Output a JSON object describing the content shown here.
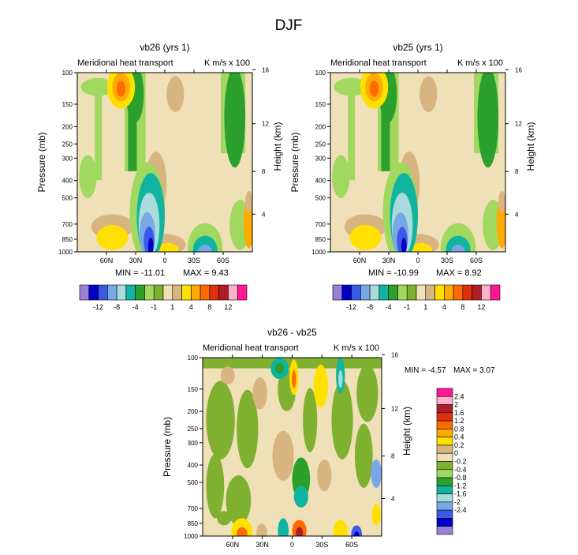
{
  "figure": {
    "title": "DJF"
  },
  "chart_data": [
    {
      "type": "heatmap",
      "title": "vb26 (yrs 1)",
      "subtitle_left": "Meridional heat transport",
      "subtitle_right": "K m/s x 100",
      "ylabel": "Pressure (mb)",
      "ylabel_right": "Height (km)",
      "x_ticks": [
        "60N",
        "30N",
        "0",
        "30S",
        "60S"
      ],
      "x_tick_values": [
        60,
        30,
        0,
        -30,
        -60
      ],
      "xlim": [
        90,
        -90
      ],
      "y_ticks": [
        "100",
        "150",
        "200",
        "250",
        "300",
        "400",
        "500",
        "700",
        "850",
        "1000"
      ],
      "y_tick_values": [
        100,
        150,
        200,
        250,
        300,
        400,
        500,
        700,
        850,
        1000
      ],
      "ylim": [
        1000,
        100
      ],
      "height_ticks": [
        "16",
        "12",
        "8",
        "4"
      ],
      "height_tick_values": [
        16,
        12,
        8,
        4
      ],
      "min_label": "MIN = -11.01",
      "max_label": "MAX =   9.43",
      "colorbar": {
        "orientation": "horizontal",
        "colors": [
          "#9b80d8",
          "#0000c8",
          "#3c5ae6",
          "#78a8e6",
          "#a8dcdc",
          "#10b4a0",
          "#2ca02c",
          "#a0d860",
          "#80b030",
          "#f0e0b8",
          "#d8b480",
          "#ffe000",
          "#ffaa00",
          "#ff6a00",
          "#e03010",
          "#b01c28",
          "#ffb0c8",
          "#ff1894"
        ],
        "levels": [
          "-12",
          "-8",
          "-4",
          "-1",
          "1",
          "4",
          "8",
          "12"
        ]
      }
    },
    {
      "type": "heatmap",
      "title": "vb25 (yrs 1)",
      "subtitle_left": "Meridional heat transport",
      "subtitle_right": "K m/s x 100",
      "ylabel": "Pressure (mb)",
      "ylabel_right": "Height (km)",
      "x_ticks": [
        "60N",
        "30N",
        "0",
        "30S",
        "60S"
      ],
      "x_tick_values": [
        60,
        30,
        0,
        -30,
        -60
      ],
      "xlim": [
        90,
        -90
      ],
      "y_ticks": [
        "100",
        "150",
        "200",
        "250",
        "300",
        "400",
        "500",
        "700",
        "850",
        "1000"
      ],
      "y_tick_values": [
        100,
        150,
        200,
        250,
        300,
        400,
        500,
        700,
        850,
        1000
      ],
      "ylim": [
        1000,
        100
      ],
      "height_ticks": [
        "16",
        "12",
        "8",
        "4"
      ],
      "height_tick_values": [
        16,
        12,
        8,
        4
      ],
      "min_label": "MIN = -10.99",
      "max_label": "MAX =   8.92",
      "colorbar": {
        "orientation": "horizontal",
        "colors": [
          "#9b80d8",
          "#0000c8",
          "#3c5ae6",
          "#78a8e6",
          "#a8dcdc",
          "#10b4a0",
          "#2ca02c",
          "#a0d860",
          "#80b030",
          "#f0e0b8",
          "#d8b480",
          "#ffe000",
          "#ffaa00",
          "#ff6a00",
          "#e03010",
          "#b01c28",
          "#ffb0c8",
          "#ff1894"
        ],
        "levels": [
          "-12",
          "-8",
          "-4",
          "-1",
          "1",
          "4",
          "8",
          "12"
        ]
      }
    },
    {
      "type": "heatmap",
      "title": "vb26 - vb25",
      "subtitle_left": "Meridional heat transport",
      "subtitle_right": "K m/s x 100",
      "ylabel": "Pressure (mb)",
      "ylabel_right": "Height (km)",
      "x_ticks": [
        "60N",
        "30N",
        "0",
        "30S",
        "60S"
      ],
      "x_tick_values": [
        60,
        30,
        0,
        -30,
        -60
      ],
      "xlim": [
        90,
        -90
      ],
      "y_ticks": [
        "100",
        "150",
        "200",
        "250",
        "300",
        "400",
        "500",
        "700",
        "850",
        "1000"
      ],
      "y_tick_values": [
        100,
        150,
        200,
        250,
        300,
        400,
        500,
        700,
        850,
        1000
      ],
      "ylim": [
        1000,
        100
      ],
      "height_ticks": [
        "16",
        "12",
        "8",
        "4"
      ],
      "height_tick_values": [
        16,
        12,
        8,
        4
      ],
      "min_label": "MIN =  -4.57",
      "max_label": "MAX =   3.07",
      "colorbar": {
        "orientation": "vertical",
        "colors": [
          "#9b80d8",
          "#0000c8",
          "#3c5ae6",
          "#78a8e6",
          "#a8dcdc",
          "#10b4a0",
          "#2ca02c",
          "#a0d860",
          "#80b030",
          "#f0e0b8",
          "#d8b480",
          "#ffe000",
          "#ffaa00",
          "#ff6a00",
          "#e03010",
          "#b01c28",
          "#ffb0c8",
          "#ff1894"
        ],
        "levels": [
          "2.4",
          "2",
          "1.6",
          "1.2",
          "0.8",
          "0.4",
          "0.2",
          "0",
          "-0.2",
          "-0.4",
          "-0.8",
          "-1.2",
          "-1.6",
          "-2",
          "-2.4"
        ]
      }
    }
  ]
}
